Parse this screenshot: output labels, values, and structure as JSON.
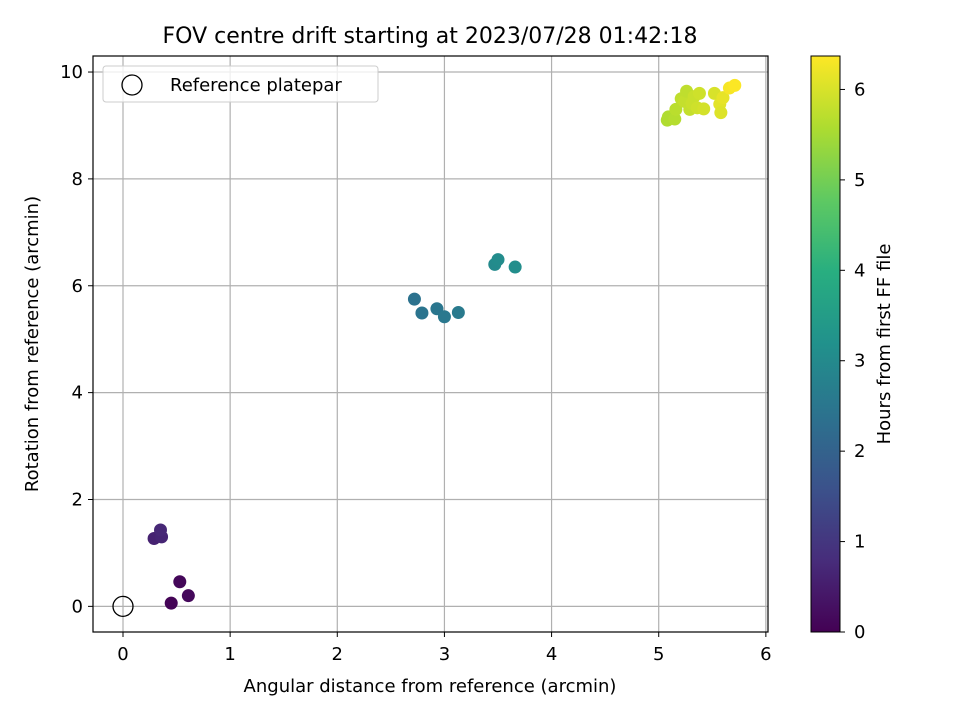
{
  "chart_data": {
    "type": "scatter",
    "title": "FOV centre drift starting at 2023/07/28 01:42:18",
    "xlabel": "Angular distance from reference (arcmin)",
    "ylabel": "Rotation from reference (arcmin)",
    "xlim": [
      -0.28,
      6.02
    ],
    "ylim": [
      -0.48,
      10.3
    ],
    "xticks": [
      0,
      1,
      2,
      3,
      4,
      5,
      6
    ],
    "xtick_labels": [
      "0",
      "1",
      "2",
      "3",
      "4",
      "5",
      "6"
    ],
    "yticks": [
      0,
      2,
      4,
      6,
      8,
      10
    ],
    "ytick_labels": [
      "0",
      "2",
      "4",
      "6",
      "8",
      "10"
    ],
    "grid": true,
    "legend": {
      "placement": "top-left",
      "entries": [
        {
          "label": "Reference platepar",
          "marker": "hollow-circle"
        }
      ]
    },
    "reference_point": {
      "x": 0.0,
      "y": 0.0
    },
    "colorbar": {
      "label": "Hours from first FF file",
      "colormap": "viridis",
      "range": [
        0,
        6.37
      ],
      "ticks": [
        0,
        1,
        2,
        3,
        4,
        5,
        6
      ],
      "tick_labels": [
        "0",
        "1",
        "2",
        "3",
        "4",
        "5",
        "6"
      ]
    },
    "points": [
      {
        "x": 0.45,
        "y": 0.06,
        "h": 0.05
      },
      {
        "x": 0.53,
        "y": 0.46,
        "h": 0.1
      },
      {
        "x": 0.61,
        "y": 0.2,
        "h": 0.15
      },
      {
        "x": 0.29,
        "y": 1.27,
        "h": 0.6
      },
      {
        "x": 0.36,
        "y": 1.3,
        "h": 0.65
      },
      {
        "x": 0.35,
        "y": 1.43,
        "h": 0.7
      },
      {
        "x": 2.72,
        "y": 5.75,
        "h": 2.4
      },
      {
        "x": 2.79,
        "y": 5.49,
        "h": 2.45
      },
      {
        "x": 2.93,
        "y": 5.57,
        "h": 2.5
      },
      {
        "x": 3.0,
        "y": 5.42,
        "h": 2.55
      },
      {
        "x": 3.13,
        "y": 5.5,
        "h": 2.6
      },
      {
        "x": 3.47,
        "y": 6.4,
        "h": 3.0
      },
      {
        "x": 3.5,
        "y": 6.49,
        "h": 3.05
      },
      {
        "x": 3.66,
        "y": 6.35,
        "h": 3.1
      },
      {
        "x": 5.08,
        "y": 9.1,
        "h": 5.6
      },
      {
        "x": 5.09,
        "y": 9.16,
        "h": 5.6
      },
      {
        "x": 5.15,
        "y": 9.12,
        "h": 5.65
      },
      {
        "x": 5.16,
        "y": 9.3,
        "h": 5.7
      },
      {
        "x": 5.21,
        "y": 9.5,
        "h": 5.75
      },
      {
        "x": 5.24,
        "y": 9.45,
        "h": 5.8
      },
      {
        "x": 5.26,
        "y": 9.64,
        "h": 5.75
      },
      {
        "x": 5.29,
        "y": 9.3,
        "h": 5.8
      },
      {
        "x": 5.31,
        "y": 9.41,
        "h": 5.85
      },
      {
        "x": 5.33,
        "y": 9.54,
        "h": 5.85
      },
      {
        "x": 5.36,
        "y": 9.33,
        "h": 5.9
      },
      {
        "x": 5.38,
        "y": 9.6,
        "h": 5.9
      },
      {
        "x": 5.42,
        "y": 9.31,
        "h": 5.95
      },
      {
        "x": 5.52,
        "y": 9.6,
        "h": 6.0
      },
      {
        "x": 5.57,
        "y": 9.4,
        "h": 6.1
      },
      {
        "x": 5.58,
        "y": 9.24,
        "h": 6.05
      },
      {
        "x": 5.6,
        "y": 9.52,
        "h": 6.15
      },
      {
        "x": 5.66,
        "y": 9.7,
        "h": 6.3
      },
      {
        "x": 5.71,
        "y": 9.75,
        "h": 6.35
      }
    ]
  }
}
